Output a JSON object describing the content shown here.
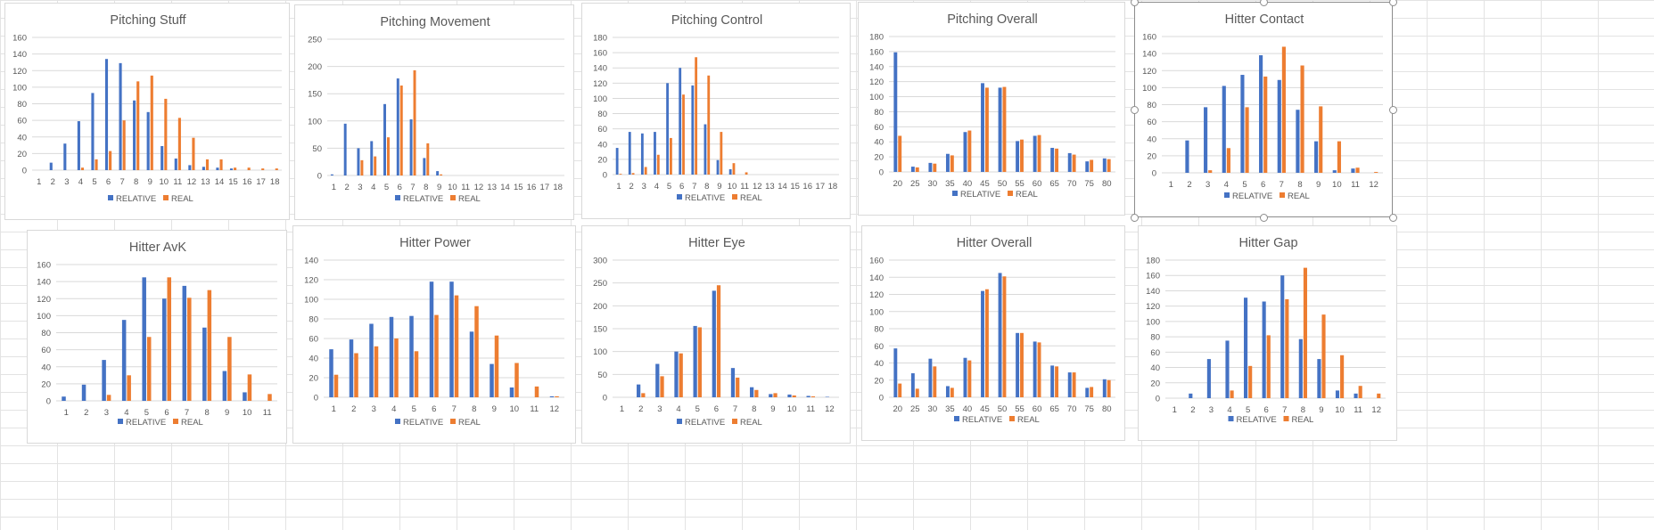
{
  "colors": {
    "relative": "#4472C4",
    "real": "#ED7D31",
    "grid": "#D9D9D9",
    "axis_text": "#595959",
    "title": "#595959"
  },
  "chart_data": [
    {
      "type": "bar",
      "title": "Pitching Stuff",
      "categories": [
        "1",
        "2",
        "3",
        "4",
        "5",
        "6",
        "7",
        "8",
        "9",
        "10",
        "11",
        "12",
        "13",
        "14",
        "15",
        "16",
        "17",
        "18"
      ],
      "ylim": [
        0,
        160
      ],
      "yticks": [
        0,
        20,
        40,
        60,
        80,
        100,
        120,
        140,
        160
      ],
      "series": [
        {
          "name": "RELATIVE",
          "values": [
            0,
            9,
            32,
            59,
            93,
            134,
            129,
            84,
            70,
            29,
            14,
            6,
            4,
            3,
            2,
            0,
            0,
            0
          ]
        },
        {
          "name": "REAL",
          "values": [
            0,
            0,
            0,
            3,
            13,
            23,
            60,
            107,
            114,
            86,
            63,
            39,
            13,
            13,
            3,
            3,
            2,
            2
          ]
        }
      ],
      "legend": "bottom",
      "grid": true
    },
    {
      "type": "bar",
      "title": "Pitching Movement",
      "categories": [
        "1",
        "2",
        "3",
        "4",
        "5",
        "6",
        "7",
        "8",
        "9",
        "10",
        "11",
        "12",
        "13",
        "14",
        "15",
        "16",
        "17",
        "18"
      ],
      "ylim": [
        0,
        250
      ],
      "yticks": [
        0,
        50,
        100,
        150,
        200,
        250
      ],
      "series": [
        {
          "name": "RELATIVE",
          "values": [
            2,
            95,
            50,
            63,
            131,
            178,
            103,
            32,
            8,
            0,
            0,
            0,
            0,
            0,
            0,
            0,
            0,
            0
          ]
        },
        {
          "name": "REAL",
          "values": [
            0,
            0,
            28,
            35,
            70,
            165,
            193,
            59,
            2,
            0,
            0,
            0,
            0,
            0,
            0,
            0,
            0,
            0
          ]
        }
      ],
      "legend": "bottom",
      "grid": true
    },
    {
      "type": "bar",
      "title": "Pitching Control",
      "categories": [
        "1",
        "2",
        "3",
        "4",
        "5",
        "6",
        "7",
        "8",
        "9",
        "10",
        "11",
        "12",
        "13",
        "14",
        "15",
        "16",
        "17",
        "18"
      ],
      "ylim": [
        0,
        180
      ],
      "yticks": [
        0,
        20,
        40,
        60,
        80,
        100,
        120,
        140,
        160,
        180
      ],
      "series": [
        {
          "name": "RELATIVE",
          "values": [
            35,
            56,
            54,
            56,
            120,
            140,
            117,
            66,
            19,
            7,
            0,
            0,
            0,
            0,
            0,
            0,
            0,
            0
          ]
        },
        {
          "name": "REAL",
          "values": [
            1,
            2,
            10,
            26,
            48,
            105,
            154,
            130,
            56,
            15,
            3,
            0,
            0,
            0,
            0,
            0,
            0,
            0
          ]
        }
      ],
      "legend": "bottom",
      "grid": true
    },
    {
      "type": "bar",
      "title": "Pitching Overall",
      "categories": [
        "20",
        "25",
        "30",
        "35",
        "40",
        "45",
        "50",
        "55",
        "60",
        "65",
        "70",
        "75",
        "80"
      ],
      "ylim": [
        0,
        180
      ],
      "yticks": [
        0,
        20,
        40,
        60,
        80,
        100,
        120,
        140,
        160,
        180
      ],
      "series": [
        {
          "name": "RELATIVE",
          "values": [
            159,
            7,
            12,
            24,
            53,
            118,
            112,
            41,
            48,
            32,
            25,
            14,
            18
          ]
        },
        {
          "name": "REAL",
          "values": [
            48,
            6,
            11,
            22,
            55,
            112,
            113,
            43,
            49,
            31,
            23,
            16,
            17
          ]
        }
      ],
      "legend": "bottom",
      "grid": true
    },
    {
      "type": "bar",
      "title": "Hitter Contact",
      "categories": [
        "1",
        "2",
        "3",
        "4",
        "5",
        "6",
        "7",
        "8",
        "9",
        "10",
        "11",
        "12"
      ],
      "ylim": [
        0,
        160
      ],
      "yticks": [
        0,
        20,
        40,
        60,
        80,
        100,
        120,
        140,
        160
      ],
      "series": [
        {
          "name": "RELATIVE",
          "values": [
            0,
            38,
            77,
            102,
            115,
            138,
            109,
            74,
            37,
            3,
            5,
            0
          ]
        },
        {
          "name": "REAL",
          "values": [
            0,
            0,
            3,
            29,
            77,
            113,
            148,
            126,
            78,
            37,
            6,
            1
          ]
        }
      ],
      "legend": "bottom",
      "grid": true
    },
    {
      "type": "bar",
      "title": "Hitter AvK",
      "categories": [
        "1",
        "2",
        "3",
        "4",
        "5",
        "6",
        "7",
        "8",
        "9",
        "10",
        "11"
      ],
      "ylim": [
        0,
        160
      ],
      "yticks": [
        0,
        20,
        40,
        60,
        80,
        100,
        120,
        140,
        160
      ],
      "series": [
        {
          "name": "RELATIVE",
          "values": [
            5,
            19,
            48,
            95,
            145,
            120,
            135,
            86,
            35,
            10,
            0
          ]
        },
        {
          "name": "REAL",
          "values": [
            0,
            0,
            7,
            30,
            75,
            145,
            121,
            130,
            75,
            31,
            8
          ]
        }
      ],
      "legend": "bottom",
      "grid": true
    },
    {
      "type": "bar",
      "title": "Hitter Power",
      "categories": [
        "1",
        "2",
        "3",
        "4",
        "5",
        "6",
        "7",
        "8",
        "9",
        "10",
        "11",
        "12"
      ],
      "ylim": [
        0,
        140
      ],
      "yticks": [
        0,
        20,
        40,
        60,
        80,
        100,
        120,
        140
      ],
      "series": [
        {
          "name": "RELATIVE",
          "values": [
            49,
            59,
            75,
            82,
            83,
            118,
            118,
            67,
            34,
            10,
            0,
            1
          ]
        },
        {
          "name": "REAL",
          "values": [
            23,
            45,
            52,
            60,
            47,
            84,
            104,
            93,
            63,
            35,
            11,
            1
          ]
        }
      ],
      "legend": "bottom",
      "grid": true
    },
    {
      "type": "bar",
      "title": "Hitter Eye",
      "categories": [
        "1",
        "2",
        "3",
        "4",
        "5",
        "6",
        "7",
        "8",
        "9",
        "10",
        "11",
        "12"
      ],
      "ylim": [
        0,
        300
      ],
      "yticks": [
        0,
        50,
        100,
        150,
        200,
        250,
        300
      ],
      "series": [
        {
          "name": "RELATIVE",
          "values": [
            0,
            28,
            73,
            100,
            156,
            233,
            64,
            22,
            7,
            6,
            3,
            1
          ]
        },
        {
          "name": "REAL",
          "values": [
            0,
            9,
            46,
            96,
            153,
            245,
            43,
            16,
            9,
            4,
            2,
            0
          ]
        }
      ],
      "legend": "bottom",
      "grid": true
    },
    {
      "type": "bar",
      "title": "Hitter Overall",
      "categories": [
        "20",
        "25",
        "30",
        "35",
        "40",
        "45",
        "50",
        "55",
        "60",
        "65",
        "70",
        "75",
        "80"
      ],
      "ylim": [
        0,
        160
      ],
      "yticks": [
        0,
        20,
        40,
        60,
        80,
        100,
        120,
        140,
        160
      ],
      "series": [
        {
          "name": "RELATIVE",
          "values": [
            57,
            28,
            45,
            13,
            46,
            124,
            145,
            75,
            65,
            37,
            29,
            11,
            21
          ]
        },
        {
          "name": "REAL",
          "values": [
            16,
            10,
            36,
            11,
            43,
            126,
            141,
            75,
            64,
            36,
            29,
            12,
            20
          ]
        }
      ],
      "legend": "bottom",
      "grid": true
    },
    {
      "type": "bar",
      "title": "Hitter Gap",
      "categories": [
        "1",
        "2",
        "3",
        "4",
        "5",
        "6",
        "7",
        "8",
        "9",
        "10",
        "11",
        "12"
      ],
      "ylim": [
        0,
        180
      ],
      "yticks": [
        0,
        20,
        40,
        60,
        80,
        100,
        120,
        140,
        160,
        180
      ],
      "series": [
        {
          "name": "RELATIVE",
          "values": [
            0,
            6,
            51,
            75,
            131,
            126,
            160,
            77,
            51,
            10,
            6,
            0
          ]
        },
        {
          "name": "REAL",
          "values": [
            0,
            0,
            0,
            10,
            42,
            82,
            129,
            170,
            109,
            56,
            16,
            6
          ]
        }
      ],
      "legend": "bottom",
      "grid": true
    }
  ]
}
